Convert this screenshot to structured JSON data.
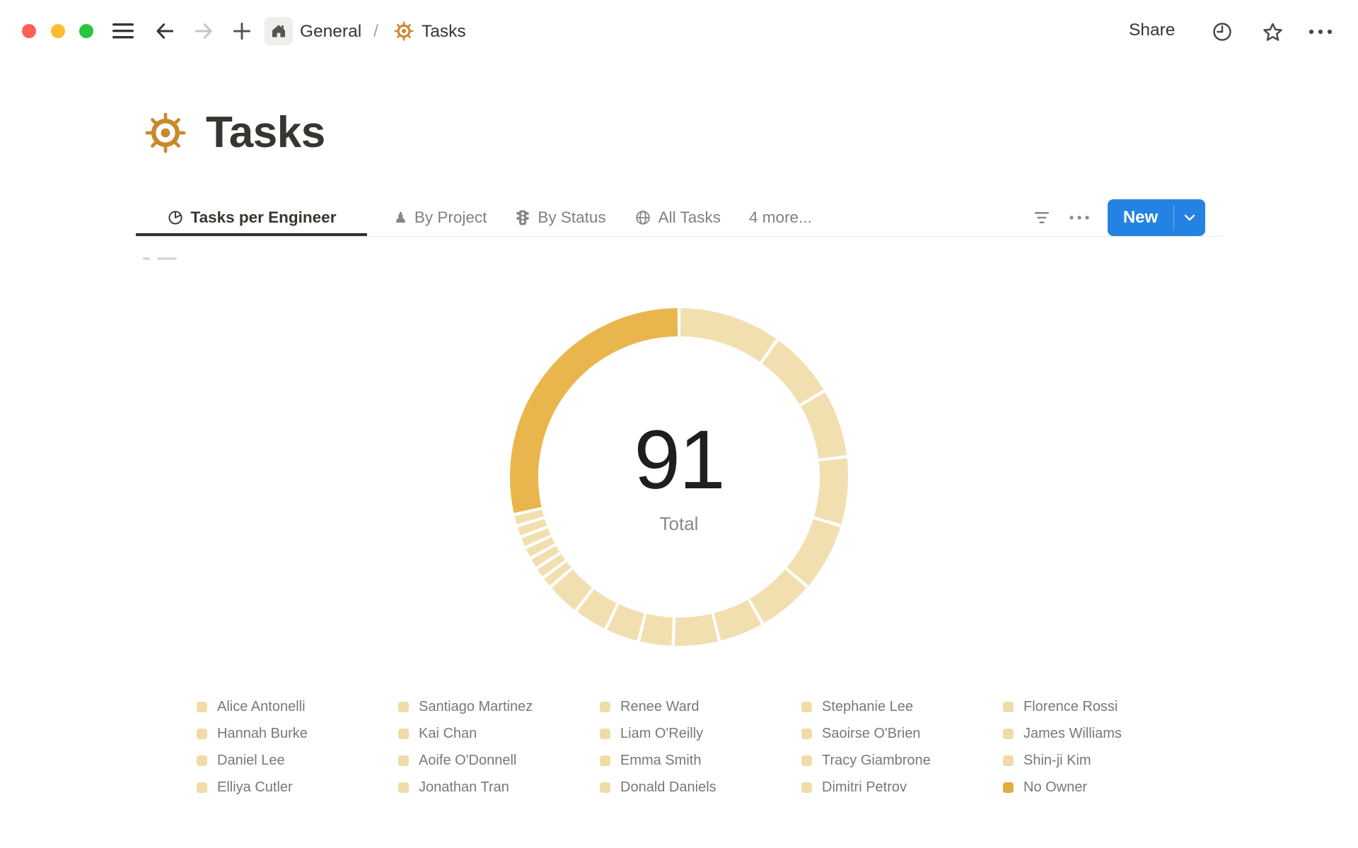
{
  "topbar": {
    "breadcrumb": {
      "workspace": "General",
      "separator": "/",
      "page": "Tasks"
    },
    "share_label": "Share"
  },
  "page": {
    "title": "Tasks",
    "icon": "ship-helm"
  },
  "view_tabs": [
    {
      "label": "Tasks per Engineer",
      "icon": "pie-chart",
      "active": true
    },
    {
      "label": "By Project",
      "icon": "pawn",
      "active": false
    },
    {
      "label": "By Status",
      "icon": "traffic-light",
      "active": false
    },
    {
      "label": "All Tasks",
      "icon": "globe",
      "active": false
    },
    {
      "label": "4 more...",
      "icon": null,
      "active": false
    }
  ],
  "view_controls": {
    "new_button_label": "New"
  },
  "chart_data": {
    "type": "pie",
    "donut": true,
    "title": "Tasks per Engineer",
    "center_value": "91",
    "center_label": "Total",
    "total_tasks": 91,
    "categories": [
      "Alice Antonelli",
      "Hannah Burke",
      "Daniel Lee",
      "Elliya Cutler",
      "Santiago Martinez",
      "Kai Chan",
      "Aoife O'Donnell",
      "Jonathan Tran",
      "Renee Ward",
      "Liam O'Reilly",
      "Emma Smith",
      "Donald Daniels",
      "Stephanie Lee",
      "Saoirse O'Brien",
      "Tracy Giambrone",
      "Dimitri Petrov",
      "Florence Rossi",
      "James Williams",
      "Shin-ji Kim",
      "No Owner"
    ],
    "values": [
      9,
      6,
      6,
      6,
      6,
      5,
      4,
      4,
      3,
      3,
      3,
      3,
      1,
      1,
      1,
      1,
      1,
      1,
      1,
      26
    ],
    "values_note": "estimated from arc lengths; total shown is 91",
    "colors": {
      "segment_light": "#F2DFB0",
      "segment_highlight": "#E9B64D",
      "legend_light": "#F0DCA8",
      "legend_highlight": "#E3AC3F",
      "highlight_category": "No Owner"
    },
    "legend_position": "bottom",
    "legend_columns": 5,
    "legend_flow": "column-major"
  },
  "colors": {
    "accent_blue": "#2483E2",
    "text_dark": "#37352F",
    "text_muted": "#7B7873",
    "gold": "#C9882B",
    "traffic_red": "#FE5F57",
    "traffic_yellow": "#FEBC2E",
    "traffic_green": "#28C73F"
  }
}
